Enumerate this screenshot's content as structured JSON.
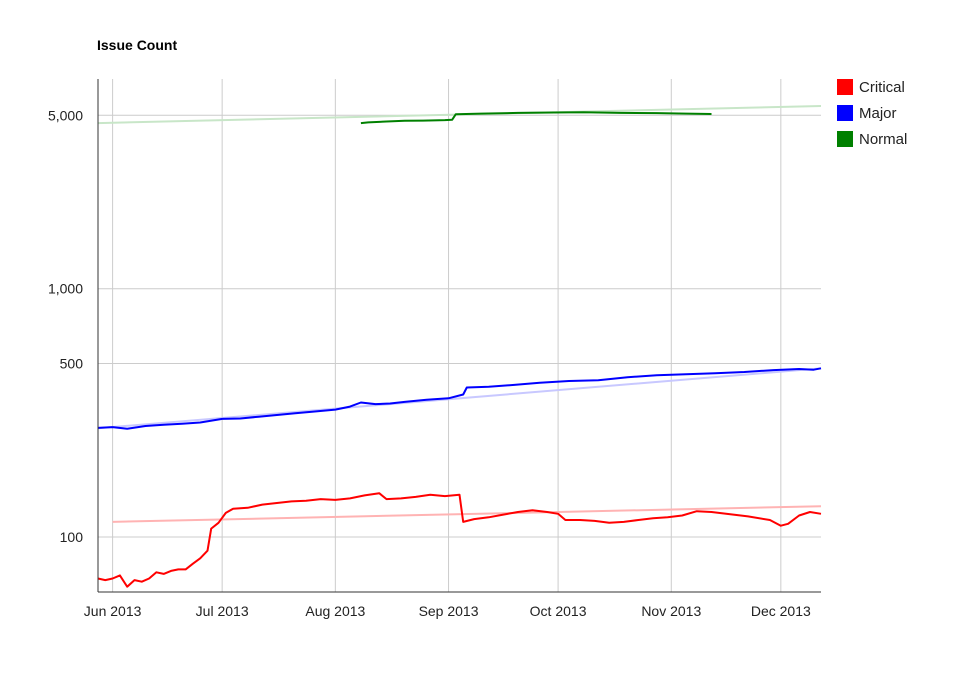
{
  "chart_data": {
    "type": "line",
    "title": "Issue Count",
    "xlabel": "",
    "ylabel": "",
    "y_scale": "log",
    "ylim": [
      60,
      7000
    ],
    "xlim": [
      "2013-05-28",
      "2013-12-12"
    ],
    "x_ticks": [
      {
        "date": "2013-06-01",
        "label": "Jun 2013"
      },
      {
        "date": "2013-07-01",
        "label": "Jul 2013"
      },
      {
        "date": "2013-08-01",
        "label": "Aug 2013"
      },
      {
        "date": "2013-09-01",
        "label": "Sep 2013"
      },
      {
        "date": "2013-10-01",
        "label": "Oct 2013"
      },
      {
        "date": "2013-11-01",
        "label": "Nov 2013"
      },
      {
        "date": "2013-12-01",
        "label": "Dec 2013"
      }
    ],
    "y_ticks": [
      {
        "value": 5000,
        "label": "5,000"
      },
      {
        "value": 1000,
        "label": "1,000"
      },
      {
        "value": 500,
        "label": "500"
      },
      {
        "value": 100,
        "label": "100"
      }
    ],
    "grid": true,
    "legend_position": "right",
    "series": [
      {
        "name": "Critical",
        "color": "#ff0000",
        "trendline_color": "#ffb3b3",
        "trendline": [
          [
            "2013-06-01",
            115
          ],
          [
            "2013-12-12",
            133
          ]
        ],
        "points": [
          [
            "2013-05-28",
            68
          ],
          [
            "2013-05-30",
            67
          ],
          [
            "2013-06-01",
            68
          ],
          [
            "2013-06-03",
            70
          ],
          [
            "2013-06-05",
            63
          ],
          [
            "2013-06-07",
            67
          ],
          [
            "2013-06-09",
            66
          ],
          [
            "2013-06-11",
            68
          ],
          [
            "2013-06-13",
            72
          ],
          [
            "2013-06-15",
            71
          ],
          [
            "2013-06-17",
            73
          ],
          [
            "2013-06-19",
            74
          ],
          [
            "2013-06-21",
            74
          ],
          [
            "2013-06-23",
            78
          ],
          [
            "2013-06-25",
            82
          ],
          [
            "2013-06-27",
            88
          ],
          [
            "2013-06-28",
            108
          ],
          [
            "2013-06-30",
            114
          ],
          [
            "2013-07-02",
            125
          ],
          [
            "2013-07-04",
            130
          ],
          [
            "2013-07-08",
            131
          ],
          [
            "2013-07-12",
            135
          ],
          [
            "2013-07-16",
            137
          ],
          [
            "2013-07-20",
            139
          ],
          [
            "2013-07-24",
            140
          ],
          [
            "2013-07-28",
            142
          ],
          [
            "2013-08-01",
            141
          ],
          [
            "2013-08-05",
            143
          ],
          [
            "2013-08-09",
            147
          ],
          [
            "2013-08-13",
            150
          ],
          [
            "2013-08-15",
            142
          ],
          [
            "2013-08-19",
            143
          ],
          [
            "2013-08-23",
            145
          ],
          [
            "2013-08-27",
            148
          ],
          [
            "2013-08-31",
            146
          ],
          [
            "2013-09-04",
            148
          ],
          [
            "2013-09-05",
            115
          ],
          [
            "2013-09-08",
            118
          ],
          [
            "2013-09-12",
            120
          ],
          [
            "2013-09-16",
            123
          ],
          [
            "2013-09-20",
            126
          ],
          [
            "2013-09-24",
            128
          ],
          [
            "2013-09-28",
            126
          ],
          [
            "2013-10-01",
            124
          ],
          [
            "2013-10-03",
            117
          ],
          [
            "2013-10-07",
            117
          ],
          [
            "2013-10-11",
            116
          ],
          [
            "2013-10-15",
            114
          ],
          [
            "2013-10-19",
            115
          ],
          [
            "2013-10-23",
            117
          ],
          [
            "2013-10-27",
            119
          ],
          [
            "2013-10-31",
            120
          ],
          [
            "2013-11-04",
            122
          ],
          [
            "2013-11-08",
            127
          ],
          [
            "2013-11-12",
            126
          ],
          [
            "2013-11-22",
            121
          ],
          [
            "2013-11-28",
            117
          ],
          [
            "2013-12-01",
            111
          ],
          [
            "2013-12-03",
            113
          ],
          [
            "2013-12-06",
            122
          ],
          [
            "2013-12-09",
            126
          ],
          [
            "2013-12-12",
            124
          ]
        ]
      },
      {
        "name": "Major",
        "color": "#0000ff",
        "trendline_color": "#c8c8ff",
        "trendline": [
          [
            "2013-05-28",
            274
          ],
          [
            "2013-12-12",
            478
          ]
        ],
        "points": [
          [
            "2013-05-28",
            275
          ],
          [
            "2013-06-01",
            277
          ],
          [
            "2013-06-05",
            273
          ],
          [
            "2013-06-10",
            280
          ],
          [
            "2013-06-15",
            283
          ],
          [
            "2013-06-20",
            286
          ],
          [
            "2013-06-25",
            289
          ],
          [
            "2013-07-01",
            299
          ],
          [
            "2013-07-06",
            300
          ],
          [
            "2013-07-11",
            305
          ],
          [
            "2013-07-16",
            310
          ],
          [
            "2013-07-21",
            315
          ],
          [
            "2013-07-26",
            320
          ],
          [
            "2013-08-01",
            326
          ],
          [
            "2013-08-05",
            335
          ],
          [
            "2013-08-08",
            348
          ],
          [
            "2013-08-12",
            343
          ],
          [
            "2013-08-16",
            345
          ],
          [
            "2013-08-20",
            350
          ],
          [
            "2013-08-26",
            357
          ],
          [
            "2013-09-01",
            362
          ],
          [
            "2013-09-05",
            375
          ],
          [
            "2013-09-06",
            400
          ],
          [
            "2013-09-12",
            403
          ],
          [
            "2013-09-19",
            410
          ],
          [
            "2013-09-26",
            418
          ],
          [
            "2013-10-04",
            425
          ],
          [
            "2013-10-12",
            428
          ],
          [
            "2013-10-20",
            440
          ],
          [
            "2013-10-28",
            448
          ],
          [
            "2013-11-05",
            452
          ],
          [
            "2013-11-13",
            457
          ],
          [
            "2013-11-21",
            462
          ],
          [
            "2013-11-29",
            470
          ],
          [
            "2013-12-06",
            475
          ],
          [
            "2013-12-10",
            472
          ],
          [
            "2013-12-12",
            478
          ]
        ]
      },
      {
        "name": "Normal",
        "color": "#008000",
        "trendline_color": "#c8e6c8",
        "trendline": [
          [
            "2013-05-28",
            4650
          ],
          [
            "2013-12-12",
            5450
          ]
        ],
        "points": [
          [
            "2013-08-08",
            4650
          ],
          [
            "2013-08-10",
            4680
          ],
          [
            "2013-08-15",
            4720
          ],
          [
            "2013-08-20",
            4750
          ],
          [
            "2013-08-25",
            4760
          ],
          [
            "2013-08-31",
            4780
          ],
          [
            "2013-09-02",
            4800
          ],
          [
            "2013-09-03",
            5050
          ],
          [
            "2013-09-10",
            5080
          ],
          [
            "2013-09-20",
            5110
          ],
          [
            "2013-09-30",
            5130
          ],
          [
            "2013-10-08",
            5140
          ],
          [
            "2013-10-18",
            5110
          ],
          [
            "2013-10-28",
            5100
          ],
          [
            "2013-11-05",
            5080
          ],
          [
            "2013-11-12",
            5060
          ]
        ]
      }
    ]
  }
}
